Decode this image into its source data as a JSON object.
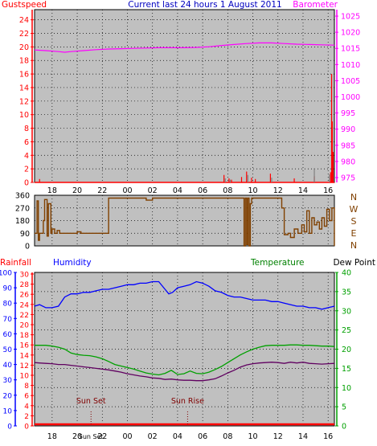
{
  "title": "Current last 24 hours 1 August 2011",
  "colors": {
    "background": "#ffffff",
    "plot": "#c0c0c0",
    "grid": "#000000",
    "gust": "#ff0000",
    "barometer": "#ff00ff",
    "humidity": "#0000ff",
    "temperature": "#00a000",
    "dewpoint": "#600060",
    "direction": "#804000",
    "rainfall": "#ff0000",
    "axis_dark": "#202020",
    "sun_marker": "#800000"
  },
  "time_ticks": [
    "18",
    "20",
    "22",
    "00",
    "02",
    "04",
    "06",
    "08",
    "10",
    "12",
    "14",
    "16"
  ],
  "chart_data": [
    {
      "id": "wind-baro",
      "type": "line",
      "title": "Current last 24 hours 1 August 2011",
      "left_label": "Gustspeed",
      "right_label": "Barometer",
      "left_ticks": [
        "0",
        "2",
        "4",
        "6",
        "8",
        "10",
        "12",
        "14",
        "16",
        "18",
        "20",
        "22",
        "24"
      ],
      "right_ticks": [
        "975",
        "980",
        "985",
        "990",
        "995",
        "1000",
        "1005",
        "1010",
        "1015",
        "1020",
        "1025"
      ],
      "left_range": [
        0,
        25.5
      ],
      "right_range": [
        973.5,
        1027
      ],
      "x_range": [
        16.6,
        40.5
      ],
      "series": [
        {
          "name": "Barometer",
          "axis": "right",
          "color": "#ff00ff",
          "x": [
            16.6,
            17.5,
            18.5,
            19.0,
            19.5,
            20.5,
            21.5,
            22.5,
            23.5,
            24.5,
            25.5,
            26.5,
            27.5,
            28.5,
            29.5,
            30.5,
            31.5,
            32.5,
            33.5,
            34.5,
            35.5,
            36.5,
            37.5,
            38.5,
            39.5,
            40.5
          ],
          "y": [
            1014.5,
            1014.3,
            1014.0,
            1013.8,
            1014.0,
            1014.3,
            1014.6,
            1014.8,
            1014.9,
            1015.0,
            1015.1,
            1015.2,
            1015.2,
            1015.2,
            1015.3,
            1015.5,
            1015.9,
            1016.2,
            1016.5,
            1016.7,
            1016.7,
            1016.5,
            1016.3,
            1016.2,
            1016.1,
            1016.0
          ]
        },
        {
          "name": "Gustspeed",
          "axis": "left",
          "color": "#ff0000",
          "style": "spikes",
          "x": [
            17.0,
            31.7,
            32.1,
            32.3,
            33.1,
            33.5,
            33.9,
            34.2,
            35.4,
            37.3,
            38.9,
            40.2,
            40.28,
            40.33,
            40.4
          ],
          "y": [
            0.5,
            1.1,
            0.6,
            0.4,
            0.8,
            1.6,
            0.7,
            0.5,
            1.3,
            0.6,
            0.9,
            1.5,
            16.0,
            9.0,
            4.5
          ]
        },
        {
          "name": "Gust",
          "axis": "left",
          "color": "#808080",
          "style": "spikes",
          "x": [
            31.8,
            32.2,
            33.6,
            35.5,
            38.9,
            40.1
          ],
          "y": [
            0.6,
            0.4,
            1.1,
            0.7,
            2.1,
            1.2
          ]
        }
      ]
    },
    {
      "id": "wind-direction",
      "type": "line",
      "right_label": "N W S E N",
      "left_ticks": [
        "0",
        "90",
        "180",
        "270",
        "360"
      ],
      "y_range": [
        0,
        360
      ],
      "x_range": [
        16.6,
        40.5
      ],
      "series": [
        {
          "name": "Wind Direction",
          "color": "#804000",
          "step": true,
          "x": [
            16.6,
            16.8,
            16.9,
            17.0,
            17.3,
            17.4,
            17.6,
            17.7,
            17.9,
            18.0,
            18.2,
            18.4,
            18.6,
            19.0,
            19.5,
            20.0,
            20.3,
            20.5,
            20.7,
            21.0,
            21.5,
            22.0,
            22.5,
            23.0,
            23.5,
            24.0,
            24.5,
            25.0,
            25.5,
            26.0,
            26.5,
            27.0,
            27.5,
            28.0,
            28.5,
            29.0,
            29.5,
            30.0,
            30.5,
            31.0,
            31.5,
            32.0,
            32.5,
            33.0,
            33.3,
            33.4,
            33.5,
            33.6,
            33.7,
            33.8,
            33.9,
            34.0,
            34.2,
            34.4,
            34.6,
            34.8,
            35.0,
            35.3,
            35.6,
            35.9,
            36.1,
            36.3,
            36.5,
            36.8,
            37.0,
            37.3,
            37.6,
            37.9,
            38.1,
            38.3,
            38.5,
            38.7,
            38.9,
            39.1,
            39.3,
            39.5,
            39.7,
            39.9,
            40.1,
            40.3,
            40.5
          ],
          "y": [
            90,
            320,
            40,
            90,
            180,
            330,
            70,
            300,
            90,
            120,
            90,
            110,
            90,
            90,
            90,
            100,
            90,
            90,
            90,
            90,
            90,
            90,
            340,
            340,
            340,
            340,
            340,
            340,
            325,
            340,
            340,
            340,
            340,
            340,
            340,
            340,
            340,
            340,
            340,
            340,
            340,
            340,
            340,
            340,
            0,
            340,
            10,
            340,
            0,
            300,
            340,
            340,
            340,
            340,
            340,
            340,
            340,
            340,
            340,
            340,
            340,
            270,
            80,
            90,
            60,
            120,
            90,
            150,
            100,
            250,
            90,
            200,
            150,
            170,
            120,
            200,
            140,
            260,
            180,
            270,
            0
          ]
        }
      ]
    },
    {
      "id": "temp-hum",
      "type": "line",
      "left_label": "Rainfall",
      "left2_label": "Humidity",
      "right_label": "Temperature",
      "right2_label": "Dew Point",
      "rain_ticks": [
        "0",
        "2",
        "4",
        "6",
        "8",
        "10",
        "12",
        "14",
        "16",
        "18",
        "20",
        "22",
        "24",
        "26",
        "28",
        "30"
      ],
      "humidity_ticks": [
        "0",
        "10",
        "20",
        "30",
        "40",
        "50",
        "60",
        "70",
        "80",
        "90",
        "100"
      ],
      "temp_ticks": [
        "0",
        "5",
        "10",
        "15",
        "20",
        "25",
        "30",
        "35",
        "40"
      ],
      "humidity_range": [
        0,
        100
      ],
      "temp_range": [
        0,
        40
      ],
      "x_range": [
        16.6,
        40.5
      ],
      "annotations": [
        {
          "text": "Sun Set",
          "x": 21.1
        },
        {
          "text": "Sun Rise",
          "x": 28.8
        }
      ],
      "series": [
        {
          "name": "Humidity",
          "axis": "humidity",
          "color": "#0000ff",
          "x": [
            16.6,
            17.0,
            17.5,
            18.0,
            18.5,
            19.0,
            19.5,
            20.0,
            20.5,
            21.0,
            21.5,
            22.0,
            22.5,
            23.0,
            23.5,
            24.0,
            24.5,
            25.0,
            25.5,
            26.0,
            26.5,
            27.0,
            27.3,
            27.6,
            28.0,
            28.5,
            29.0,
            29.5,
            30.0,
            30.5,
            31.0,
            31.5,
            32.0,
            32.5,
            33.0,
            33.5,
            34.0,
            34.5,
            35.0,
            35.5,
            36.0,
            36.5,
            37.0,
            37.5,
            38.0,
            38.5,
            39.0,
            39.5,
            40.0,
            40.5
          ],
          "y": [
            78,
            79,
            77,
            77,
            78,
            84,
            86,
            86,
            87,
            87,
            88,
            89,
            89,
            90,
            91,
            92,
            92,
            93,
            93,
            94,
            94,
            89,
            86,
            87,
            90,
            91,
            92,
            94,
            93,
            91,
            88,
            87,
            85,
            84,
            84,
            83,
            82,
            82,
            82,
            81,
            81,
            80,
            79,
            78,
            78,
            77,
            77,
            76,
            77,
            78
          ]
        },
        {
          "name": "Temperature",
          "axis": "temp",
          "color": "#00a000",
          "x": [
            16.6,
            17.0,
            17.5,
            18.0,
            18.5,
            19.0,
            19.5,
            20.0,
            20.5,
            21.0,
            21.5,
            22.0,
            22.5,
            23.0,
            23.5,
            24.0,
            24.5,
            25.0,
            25.5,
            26.0,
            26.5,
            27.0,
            27.5,
            28.0,
            28.5,
            29.0,
            29.5,
            30.0,
            30.5,
            31.0,
            31.5,
            32.0,
            32.5,
            33.0,
            33.5,
            34.0,
            34.5,
            35.0,
            35.5,
            36.0,
            36.5,
            37.0,
            37.5,
            38.0,
            38.5,
            39.0,
            39.5,
            40.0,
            40.5
          ],
          "y": [
            21.0,
            21.0,
            21.0,
            20.8,
            20.5,
            20.0,
            19.0,
            18.6,
            18.4,
            18.3,
            18.0,
            17.5,
            16.8,
            16.0,
            15.6,
            15.2,
            14.8,
            14.3,
            13.8,
            13.5,
            13.3,
            13.7,
            14.5,
            13.4,
            13.6,
            14.3,
            13.7,
            13.6,
            14.0,
            14.7,
            15.5,
            16.5,
            17.5,
            18.5,
            19.3,
            20.0,
            20.5,
            20.9,
            21.0,
            21.0,
            21.0,
            21.1,
            21.1,
            21.0,
            21.0,
            20.9,
            20.8,
            20.8,
            20.7
          ]
        },
        {
          "name": "Dew Point",
          "axis": "temp",
          "color": "#600060",
          "x": [
            16.6,
            17.0,
            17.5,
            18.0,
            18.5,
            19.0,
            19.5,
            20.0,
            20.5,
            21.0,
            21.5,
            22.0,
            22.5,
            23.0,
            23.5,
            24.0,
            24.5,
            25.0,
            25.5,
            26.0,
            26.5,
            27.0,
            27.5,
            28.0,
            28.5,
            29.0,
            29.5,
            30.0,
            30.5,
            31.0,
            31.5,
            32.0,
            32.5,
            33.0,
            33.5,
            34.0,
            34.5,
            35.0,
            35.5,
            36.0,
            36.5,
            37.0,
            37.5,
            38.0,
            38.5,
            39.0,
            39.5,
            40.0,
            40.5
          ],
          "y": [
            16.5,
            16.4,
            16.3,
            16.2,
            16.0,
            16.0,
            15.8,
            15.6,
            15.4,
            15.2,
            15.0,
            14.8,
            14.6,
            14.3,
            14.0,
            13.6,
            13.3,
            13.0,
            12.8,
            12.5,
            12.4,
            12.1,
            12.2,
            12.0,
            11.9,
            11.9,
            11.8,
            11.8,
            12.0,
            12.3,
            13.0,
            13.8,
            14.5,
            15.3,
            15.9,
            16.2,
            16.4,
            16.5,
            16.6,
            16.5,
            16.3,
            16.6,
            16.4,
            16.6,
            16.3,
            16.2,
            16.1,
            16.2,
            16.3
          ]
        },
        {
          "name": "Rainfall",
          "axis": "rain",
          "color": "#ff0000",
          "x": [
            16.6,
            40.5
          ],
          "y": [
            0,
            0
          ]
        }
      ]
    }
  ]
}
